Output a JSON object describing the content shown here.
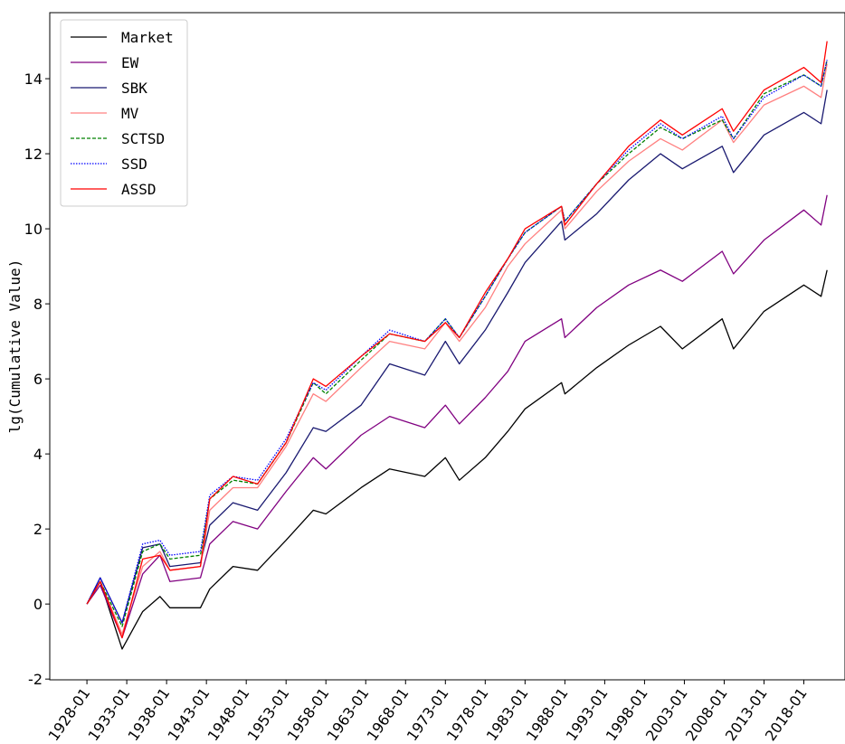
{
  "chart_data": {
    "type": "line",
    "ylabel": "lg(Cumulative Value)",
    "x": [
      "1928-01",
      "1929-09",
      "1932-06",
      "1935-01",
      "1937-03",
      "1938-06",
      "1942-04",
      "1943-06",
      "1946-05",
      "1949-06",
      "1953-01",
      "1956-06",
      "1958-01",
      "1962-06",
      "1966-01",
      "1970-06",
      "1973-01",
      "1974-10",
      "1978-01",
      "1980-11",
      "1983-01",
      "1987-08",
      "1988-01",
      "1992-01",
      "1996-01",
      "2000-01",
      "2002-10",
      "2007-10",
      "2009-03",
      "2013-01",
      "2018-01",
      "2020-03",
      "2020-12"
    ],
    "series": [
      {
        "name": "Market",
        "color": "#000000",
        "linestyle": "solid",
        "values": [
          0,
          0.6,
          -1.2,
          -0.2,
          0.2,
          -0.1,
          -0.1,
          0.4,
          1.0,
          0.9,
          1.7,
          2.5,
          2.4,
          3.1,
          3.6,
          3.4,
          3.9,
          3.3,
          3.9,
          4.6,
          5.2,
          5.9,
          5.6,
          6.3,
          6.9,
          7.4,
          6.8,
          7.6,
          6.8,
          7.8,
          8.5,
          8.2,
          8.9
        ]
      },
      {
        "name": "EW",
        "color": "#800080",
        "linestyle": "solid",
        "values": [
          0,
          0.5,
          -0.9,
          0.8,
          1.3,
          0.6,
          0.7,
          1.6,
          2.2,
          2.0,
          3.0,
          3.9,
          3.6,
          4.5,
          5.0,
          4.7,
          5.3,
          4.8,
          5.5,
          6.2,
          7.0,
          7.6,
          7.1,
          7.9,
          8.5,
          8.9,
          8.6,
          9.4,
          8.8,
          9.7,
          10.5,
          10.1,
          10.9
        ]
      },
      {
        "name": "SBK",
        "color": "#191970",
        "linestyle": "solid",
        "values": [
          0,
          0.7,
          -0.5,
          1.5,
          1.6,
          1.0,
          1.1,
          2.1,
          2.7,
          2.5,
          3.5,
          4.7,
          4.6,
          5.3,
          6.4,
          6.1,
          7.0,
          6.4,
          7.3,
          8.3,
          9.1,
          10.2,
          9.7,
          10.4,
          11.3,
          12.0,
          11.6,
          12.2,
          11.5,
          12.5,
          13.1,
          12.8,
          13.7
        ]
      },
      {
        "name": "MV",
        "color": "#ff8080",
        "linestyle": "solid",
        "values": [
          0,
          0.6,
          -0.8,
          1.0,
          1.4,
          0.9,
          1.0,
          2.5,
          3.1,
          3.1,
          4.2,
          5.6,
          5.4,
          6.3,
          7.0,
          6.8,
          7.5,
          7.0,
          7.9,
          9.0,
          9.6,
          10.5,
          10.0,
          11.0,
          11.8,
          12.4,
          12.1,
          12.9,
          12.3,
          13.3,
          13.8,
          13.5,
          14.4
        ]
      },
      {
        "name": "SCTSD",
        "color": "#008000",
        "linestyle": "dashed",
        "values": [
          0,
          0.6,
          -0.6,
          1.4,
          1.6,
          1.2,
          1.3,
          2.8,
          3.3,
          3.2,
          4.3,
          5.9,
          5.6,
          6.5,
          7.2,
          7.0,
          7.6,
          7.1,
          8.2,
          9.2,
          9.9,
          10.6,
          10.2,
          11.2,
          12.0,
          12.7,
          12.4,
          12.9,
          12.4,
          13.6,
          14.1,
          13.8,
          14.5
        ]
      },
      {
        "name": "SSD",
        "color": "#0000ff",
        "linestyle": "dotted",
        "values": [
          0,
          0.7,
          -0.5,
          1.6,
          1.7,
          1.3,
          1.4,
          2.9,
          3.4,
          3.3,
          4.4,
          5.9,
          5.7,
          6.6,
          7.3,
          7.0,
          7.6,
          7.1,
          8.2,
          9.2,
          9.9,
          10.6,
          10.2,
          11.2,
          12.1,
          12.8,
          12.4,
          13.0,
          12.4,
          13.5,
          14.1,
          13.8,
          14.5
        ]
      },
      {
        "name": "ASSD",
        "color": "#ff0000",
        "linestyle": "solid",
        "values": [
          0,
          0.6,
          -0.9,
          1.2,
          1.3,
          0.9,
          1.0,
          2.8,
          3.4,
          3.2,
          4.3,
          6.0,
          5.8,
          6.6,
          7.2,
          7.0,
          7.5,
          7.1,
          8.3,
          9.2,
          10.0,
          10.6,
          10.1,
          11.2,
          12.2,
          12.9,
          12.5,
          13.2,
          12.6,
          13.7,
          14.3,
          13.9,
          15.0
        ]
      }
    ],
    "xlim": [
      "1923-05",
      "2023-03"
    ],
    "xticks": [
      "1928-01",
      "1933-01",
      "1938-01",
      "1943-01",
      "1948-01",
      "1953-01",
      "1958-01",
      "1963-01",
      "1968-01",
      "1973-01",
      "1978-01",
      "1983-01",
      "1988-01",
      "1993-01",
      "1998-01",
      "2003-01",
      "2008-01",
      "2013-01",
      "2018-01"
    ],
    "ylim": [
      -2.02,
      15.76
    ],
    "yticks": [
      -2,
      0,
      2,
      4,
      6,
      8,
      10,
      12,
      14
    ],
    "legend": "upper left",
    "grid": false
  }
}
